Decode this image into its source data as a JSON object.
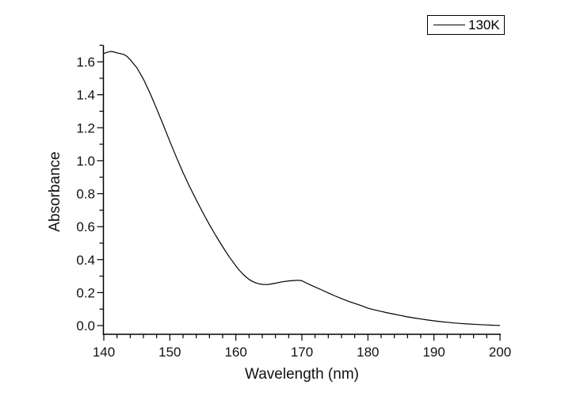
{
  "chart_data": {
    "type": "line",
    "title": "",
    "xlabel": "Wavelength (nm)",
    "ylabel": "Absorbance",
    "xlim": [
      140,
      200
    ],
    "ylim": [
      -0.05,
      1.7
    ],
    "grid": false,
    "x_major_ticks": [
      140,
      150,
      160,
      170,
      180,
      190,
      200
    ],
    "x_tick_labels": [
      "140",
      "150",
      "160",
      "170",
      "180",
      "190",
      "200"
    ],
    "x_minor_step": 2,
    "y_major_ticks": [
      0.0,
      0.2,
      0.4,
      0.6,
      0.8,
      1.0,
      1.2,
      1.4,
      1.6
    ],
    "y_tick_labels": [
      "0.0",
      "0.2",
      "0.4",
      "0.6",
      "0.8",
      "1.0",
      "1.2",
      "1.4",
      "1.6"
    ],
    "y_minor_step": 0.1,
    "legend": {
      "position": "top-right",
      "entries": [
        {
          "label": "130K",
          "color": "#000000",
          "line_style": "solid"
        }
      ]
    },
    "series": [
      {
        "name": "130K",
        "color": "#000000",
        "x": [
          140,
          140.5,
          141,
          141.5,
          142,
          143,
          143.5,
          144,
          145,
          146,
          147,
          148,
          149,
          150,
          151,
          152,
          153,
          154,
          155,
          156,
          157,
          158,
          159,
          160,
          160.5,
          161,
          161.5,
          162,
          162.5,
          163,
          163.5,
          164,
          164.5,
          165,
          166,
          167,
          168,
          169,
          169.5,
          170,
          170.5,
          171,
          172,
          173,
          174,
          175,
          176,
          177,
          178,
          179,
          180,
          181,
          182,
          183,
          184,
          185,
          186,
          187,
          188,
          189,
          190,
          191,
          192,
          193,
          194,
          195,
          196,
          197,
          198,
          199,
          200
        ],
        "y": [
          1.65,
          1.657,
          1.663,
          1.66,
          1.654,
          1.645,
          1.633,
          1.613,
          1.564,
          1.495,
          1.41,
          1.315,
          1.218,
          1.118,
          1.02,
          0.928,
          0.843,
          0.762,
          0.685,
          0.612,
          0.543,
          0.478,
          0.417,
          0.362,
          0.337,
          0.315,
          0.296,
          0.28,
          0.268,
          0.259,
          0.253,
          0.25,
          0.249,
          0.25,
          0.257,
          0.265,
          0.271,
          0.274,
          0.275,
          0.272,
          0.262,
          0.252,
          0.234,
          0.216,
          0.198,
          0.18,
          0.164,
          0.148,
          0.134,
          0.121,
          0.105,
          0.095,
          0.086,
          0.077,
          0.069,
          0.061,
          0.053,
          0.046,
          0.04,
          0.034,
          0.029,
          0.024,
          0.02,
          0.016,
          0.013,
          0.01,
          0.008,
          0.006,
          0.004,
          0.002,
          0.001
        ]
      }
    ]
  }
}
